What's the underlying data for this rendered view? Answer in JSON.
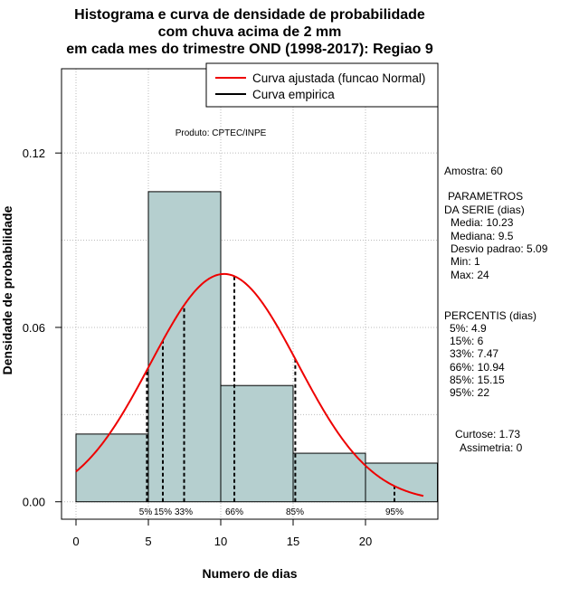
{
  "chart_data": {
    "type": "bar",
    "title_lines": [
      "Histograma e curva de densidade de probabilidade",
      "com chuva acima de 2 mm",
      "em cada mes do trimestre OND (1998-2017): Regiao 9"
    ],
    "xlabel": "Numero de dias",
    "ylabel": "Densidade de probabilidade",
    "xlim": [
      -1,
      25
    ],
    "ylim": [
      -0.006,
      0.149
    ],
    "x_ticks": [
      0,
      5,
      10,
      15,
      20
    ],
    "y_ticks": [
      0.0,
      0.06,
      0.12
    ],
    "y_tick_labels": [
      "0.00",
      "0.06",
      "0.12"
    ],
    "bins": [
      {
        "start": 0,
        "end": 5,
        "density": 0.0233
      },
      {
        "start": 5,
        "end": 10,
        "density": 0.1067
      },
      {
        "start": 10,
        "end": 15,
        "density": 0.04
      },
      {
        "start": 15,
        "end": 20,
        "density": 0.0167
      },
      {
        "start": 20,
        "end": 25,
        "density": 0.0133
      }
    ],
    "normal_curve": {
      "mean": 10.23,
      "sd": 5.09,
      "x_from": 0,
      "x_to": 24
    },
    "percentile_lines": [
      {
        "x": 4.9,
        "label": "5%"
      },
      {
        "x": 6,
        "label": "15%"
      },
      {
        "x": 7.47,
        "label": "33%"
      },
      {
        "x": 10.94,
        "label": "66%"
      },
      {
        "x": 15.15,
        "label": "85%"
      },
      {
        "x": 22,
        "label": "95%"
      }
    ],
    "legend": [
      {
        "label": "Curva ajustada (funcao Normal)",
        "color": "#ee0000"
      },
      {
        "label": "Curva empirica",
        "color": "#000000"
      }
    ],
    "legend_position": "top-right",
    "annotation": "Produto: CPTEC/INPE",
    "colors": {
      "bar_fill": "#b5cfcf",
      "curve": "#ee0000",
      "grid": "#bbbbbb"
    }
  },
  "stats_panel": {
    "sample": "Amostra: 60",
    "params_title_1": "PARAMETROS",
    "params_title_2": "DA SERIE (dias)",
    "mean": "Media: 10.23",
    "median": "Mediana: 9.5",
    "sd": "Desvio padrao: 5.09",
    "min": "Min: 1",
    "max": "Max: 24",
    "percentiles_title": "PERCENTIS (dias)",
    "p5": "5%: 4.9",
    "p15": "15%: 6",
    "p33": "33%: 7.47",
    "p66": "66%: 10.94",
    "p85": "85%: 15.15",
    "p95": "95%: 22",
    "kurtosis": "Curtose: 1.73",
    "skewness": "Assimetria: 0"
  }
}
